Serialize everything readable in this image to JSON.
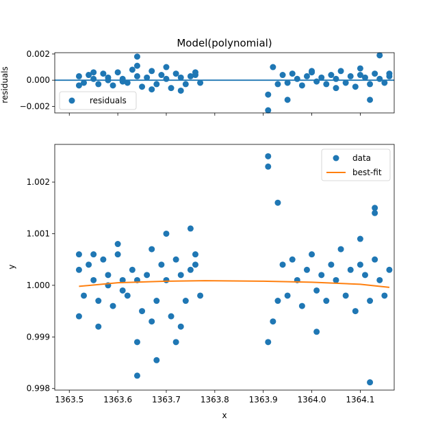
{
  "chart_data": [
    {
      "type": "scatter",
      "title": "Model(polynomial)",
      "ylabel": "residuals",
      "xlabel": "",
      "xlim": [
        1363.47,
        1364.17
      ],
      "ylim": [
        -0.0025,
        0.0021
      ],
      "xticks": [
        1363.5,
        1363.6,
        1363.7,
        1363.8,
        1363.9,
        1364.0,
        1364.1
      ],
      "yticks": [
        -0.002,
        0.0,
        0.002
      ],
      "ytick_labels": [
        "−0.002",
        "0.000",
        "0.002"
      ],
      "legend": {
        "location": "lower-left",
        "entries": [
          {
            "label": "residuals",
            "marker": "circle",
            "color": "#1f77b4"
          }
        ]
      },
      "reference_line": {
        "y": 0.0,
        "color": "#1f77b4"
      },
      "series": [
        {
          "marker": "circle",
          "color": "#1f77b4",
          "x": [
            1363.52,
            1363.53,
            1363.54,
            1363.55,
            1363.56,
            1363.57,
            1363.58,
            1363.59,
            1363.6,
            1363.61,
            1363.62,
            1363.63,
            1363.64,
            1363.65,
            1363.66,
            1363.67,
            1363.68,
            1363.69,
            1363.7,
            1363.71,
            1363.72,
            1363.73,
            1363.74,
            1363.75,
            1363.76,
            1363.77,
            1363.52,
            1363.55,
            1363.58,
            1363.61,
            1363.64,
            1363.67,
            1363.7,
            1363.73,
            1363.76,
            1363.64,
            1363.93,
            1363.94,
            1363.95,
            1363.96,
            1363.97,
            1363.98,
            1363.99,
            1364.0,
            1364.01,
            1364.02,
            1364.03,
            1364.04,
            1364.05,
            1364.06,
            1364.07,
            1364.08,
            1364.09,
            1364.1,
            1364.11,
            1364.12,
            1364.13,
            1364.14,
            1364.15,
            1364.16,
            1363.91,
            1363.91,
            1363.92,
            1363.95,
            1364.0,
            1364.05,
            1364.1,
            1364.14,
            1364.12,
            1364.16
          ],
          "y": [
            0.0003,
            -0.0002,
            0.0004,
            0.0001,
            -0.0003,
            0.0005,
            0.0002,
            -0.0004,
            0.0006,
            0.0001,
            -0.0002,
            0.0008,
            0.0003,
            -0.0005,
            0.0002,
            0.0007,
            -0.0003,
            0.0004,
            0.0001,
            -0.0006,
            0.0005,
            0.0002,
            -0.0003,
            0.0003,
            0.0004,
            -0.0002,
            -0.0004,
            0.0006,
            0.0,
            -0.0001,
            0.0011,
            -0.0007,
            0.001,
            -0.0008,
            0.0006,
            0.0018,
            -0.0003,
            0.0004,
            -0.0002,
            0.0005,
            0.0001,
            -0.0004,
            0.0003,
            0.0006,
            -0.0001,
            0.0002,
            -0.0003,
            0.0004,
            0.0001,
            0.0007,
            -0.0002,
            0.0003,
            -0.0005,
            0.0004,
            0.0002,
            -0.0003,
            0.0005,
            0.0001,
            -0.0002,
            0.0003,
            -0.0023,
            -0.0011,
            0.001,
            -0.0015,
            0.0007,
            -0.0006,
            0.0009,
            0.0019,
            -0.0015,
            0.0005
          ]
        }
      ]
    },
    {
      "type": "scatter",
      "title": "",
      "xlabel": "x",
      "ylabel": "y",
      "xlim": [
        1363.47,
        1364.17
      ],
      "ylim": [
        0.99797,
        1.00273
      ],
      "xticks": [
        1363.5,
        1363.6,
        1363.7,
        1363.8,
        1363.9,
        1364.0,
        1364.1
      ],
      "xtick_labels": [
        "1363.5",
        "1363.6",
        "1363.7",
        "1363.8",
        "1363.9",
        "1364.0",
        "1364.1"
      ],
      "yticks": [
        0.998,
        0.999,
        1.0,
        1.001,
        1.002
      ],
      "ytick_labels": [
        "0.998",
        "0.999",
        "1.000",
        "1.001",
        "1.002"
      ],
      "legend": {
        "location": "top-right",
        "entries": [
          {
            "label": "data",
            "marker": "circle",
            "color": "#1f77b4"
          },
          {
            "label": "best-fit",
            "marker": "line",
            "color": "#ff7f0e"
          }
        ]
      },
      "series": [
        {
          "name": "data",
          "marker": "circle",
          "color": "#1f77b4",
          "x": [
            1363.52,
            1363.53,
            1363.54,
            1363.55,
            1363.56,
            1363.57,
            1363.58,
            1363.59,
            1363.6,
            1363.61,
            1363.62,
            1363.63,
            1363.64,
            1363.65,
            1363.66,
            1363.67,
            1363.68,
            1363.69,
            1363.7,
            1363.71,
            1363.72,
            1363.73,
            1363.74,
            1363.75,
            1363.76,
            1363.77,
            1363.52,
            1363.55,
            1363.58,
            1363.61,
            1363.64,
            1363.67,
            1363.7,
            1363.73,
            1363.76,
            1363.64,
            1363.68,
            1363.72,
            1363.52,
            1363.56,
            1363.6,
            1363.75,
            1363.93,
            1363.94,
            1363.95,
            1363.96,
            1363.97,
            1363.98,
            1363.99,
            1364.0,
            1364.01,
            1364.02,
            1364.03,
            1364.04,
            1364.05,
            1364.06,
            1364.07,
            1364.08,
            1364.09,
            1364.1,
            1364.11,
            1364.12,
            1364.13,
            1364.14,
            1364.15,
            1364.16,
            1363.91,
            1363.91,
            1363.93,
            1363.92,
            1363.91,
            1364.13,
            1364.13,
            1364.1,
            1364.12,
            1364.01
          ],
          "y": [
            1.0003,
            0.9998,
            1.0004,
            1.0001,
            0.9997,
            1.0005,
            1.0002,
            0.9996,
            1.0006,
            1.0001,
            0.9998,
            1.0003,
            1.0001,
            0.9995,
            1.0002,
            1.0007,
            0.9997,
            1.0004,
            1.0001,
            0.9994,
            1.0005,
            1.0002,
            0.9997,
            1.0003,
            1.0004,
            0.9998,
            0.9994,
            1.0006,
            1.0,
            0.9999,
            0.9989,
            0.9993,
            1.001,
            0.9992,
            1.0006,
            0.99825,
            0.99855,
            0.9989,
            1.0006,
            0.9992,
            1.0008,
            1.0011,
            0.9997,
            1.0004,
            0.9998,
            1.0005,
            1.0001,
            0.9996,
            1.0003,
            1.0006,
            0.9999,
            1.0002,
            0.9997,
            1.0004,
            1.0001,
            1.0007,
            0.9998,
            1.0003,
            0.9995,
            1.0004,
            1.0002,
            0.9997,
            1.0005,
            1.0001,
            0.9998,
            1.0003,
            1.0025,
            1.0023,
            1.0016,
            0.9993,
            0.9989,
            1.0015,
            1.0014,
            1.0009,
            0.99812,
            0.9991
          ]
        },
        {
          "name": "best-fit",
          "marker": "line",
          "color": "#ff7f0e",
          "x": [
            1363.52,
            1363.6,
            1363.7,
            1363.78,
            1363.9,
            1364.0,
            1364.1,
            1364.16
          ],
          "y": [
            0.99998,
            1.00005,
            1.00008,
            1.00009,
            1.00008,
            1.00006,
            1.00002,
            0.99996
          ]
        }
      ]
    }
  ]
}
